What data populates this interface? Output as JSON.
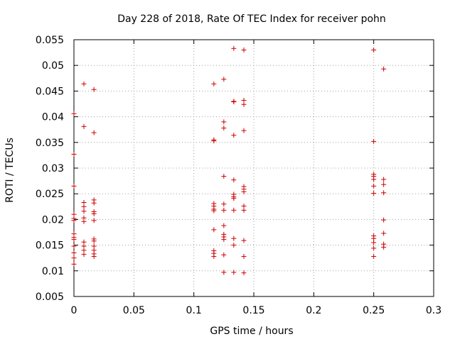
{
  "chart_data": {
    "type": "scatter",
    "title": "Day 228 of 2018, Rate Of TEC Index for receiver pohn",
    "xlabel": "GPS time / hours",
    "ylabel": "ROTI / TECUs",
    "xlim": [
      0,
      0.3
    ],
    "ylim": [
      0.005,
      0.055
    ],
    "x_ticks": [
      {
        "value": 0,
        "label": "0"
      },
      {
        "value": 0.05,
        "label": "0.05"
      },
      {
        "value": 0.1,
        "label": "0.1"
      },
      {
        "value": 0.15,
        "label": "0.15"
      },
      {
        "value": 0.2,
        "label": "0.2"
      },
      {
        "value": 0.25,
        "label": "0.25"
      },
      {
        "value": 0.3,
        "label": "0.3"
      }
    ],
    "y_ticks": [
      {
        "value": 0.005,
        "label": "0.005"
      },
      {
        "value": 0.01,
        "label": "0.01"
      },
      {
        "value": 0.015,
        "label": "0.015"
      },
      {
        "value": 0.02,
        "label": "0.02"
      },
      {
        "value": 0.025,
        "label": "0.025"
      },
      {
        "value": 0.03,
        "label": "0.03"
      },
      {
        "value": 0.035,
        "label": "0.035"
      },
      {
        "value": 0.04,
        "label": "0.04"
      },
      {
        "value": 0.045,
        "label": "0.045"
      },
      {
        "value": 0.05,
        "label": "0.05"
      },
      {
        "value": 0.055,
        "label": "0.055"
      }
    ],
    "grid": true,
    "marker": "+",
    "series": [
      {
        "name": "ROTI",
        "color": "#cc0000",
        "points": [
          [
            0,
            0.0406
          ],
          [
            0,
            0.0327
          ],
          [
            0,
            0.0265
          ],
          [
            0,
            0.021
          ],
          [
            0,
            0.0202
          ],
          [
            0,
            0.0198
          ],
          [
            0,
            0.0172
          ],
          [
            0,
            0.0165
          ],
          [
            0,
            0.0161
          ],
          [
            0,
            0.0148
          ],
          [
            0,
            0.0135
          ],
          [
            0,
            0.0125
          ],
          [
            0,
            0.0113
          ],
          [
            0.0083,
            0.0464
          ],
          [
            0.0083,
            0.0381
          ],
          [
            0.0083,
            0.0233
          ],
          [
            0.0083,
            0.0225
          ],
          [
            0.0083,
            0.0216
          ],
          [
            0.0083,
            0.0203
          ],
          [
            0.0083,
            0.0196
          ],
          [
            0.0083,
            0.0156
          ],
          [
            0.0083,
            0.0148
          ],
          [
            0.0083,
            0.014
          ],
          [
            0.0083,
            0.0132
          ],
          [
            0.0167,
            0.0453
          ],
          [
            0.0167,
            0.0369
          ],
          [
            0.0167,
            0.0238
          ],
          [
            0.0167,
            0.0232
          ],
          [
            0.0167,
            0.0215
          ],
          [
            0.0167,
            0.0211
          ],
          [
            0.0167,
            0.0198
          ],
          [
            0.0167,
            0.0162
          ],
          [
            0.0167,
            0.0158
          ],
          [
            0.0167,
            0.0148
          ],
          [
            0.0167,
            0.014
          ],
          [
            0.0167,
            0.0133
          ],
          [
            0.0167,
            0.0128
          ],
          [
            0.1167,
            0.0464
          ],
          [
            0.1167,
            0.0355
          ],
          [
            0.1167,
            0.0353
          ],
          [
            0.1167,
            0.0231
          ],
          [
            0.1167,
            0.0226
          ],
          [
            0.1167,
            0.022
          ],
          [
            0.1167,
            0.0217
          ],
          [
            0.1167,
            0.018
          ],
          [
            0.1167,
            0.0139
          ],
          [
            0.1167,
            0.0134
          ],
          [
            0.1167,
            0.0128
          ],
          [
            0.125,
            0.0473
          ],
          [
            0.125,
            0.039
          ],
          [
            0.125,
            0.0378
          ],
          [
            0.125,
            0.0284
          ],
          [
            0.125,
            0.023
          ],
          [
            0.125,
            0.0218
          ],
          [
            0.125,
            0.0188
          ],
          [
            0.125,
            0.0171
          ],
          [
            0.125,
            0.0166
          ],
          [
            0.125,
            0.0161
          ],
          [
            0.125,
            0.0131
          ],
          [
            0.125,
            0.0097
          ],
          [
            0.1333,
            0.0533
          ],
          [
            0.1333,
            0.043
          ],
          [
            0.1333,
            0.0429
          ],
          [
            0.1333,
            0.0364
          ],
          [
            0.1333,
            0.0277
          ],
          [
            0.1333,
            0.0249
          ],
          [
            0.1333,
            0.0244
          ],
          [
            0.1333,
            0.0241
          ],
          [
            0.1333,
            0.0218
          ],
          [
            0.1333,
            0.0163
          ],
          [
            0.1333,
            0.015
          ],
          [
            0.1333,
            0.0097
          ],
          [
            0.1417,
            0.053
          ],
          [
            0.1417,
            0.0432
          ],
          [
            0.1417,
            0.0424
          ],
          [
            0.1417,
            0.0373
          ],
          [
            0.1417,
            0.0264
          ],
          [
            0.1417,
            0.0259
          ],
          [
            0.1417,
            0.0254
          ],
          [
            0.1417,
            0.0226
          ],
          [
            0.1417,
            0.0218
          ],
          [
            0.1417,
            0.0159
          ],
          [
            0.1417,
            0.0128
          ],
          [
            0.1417,
            0.0096
          ],
          [
            0.25,
            0.053
          ],
          [
            0.25,
            0.0352
          ],
          [
            0.25,
            0.0288
          ],
          [
            0.25,
            0.0284
          ],
          [
            0.25,
            0.0278
          ],
          [
            0.25,
            0.0265
          ],
          [
            0.25,
            0.0251
          ],
          [
            0.25,
            0.0168
          ],
          [
            0.25,
            0.0163
          ],
          [
            0.25,
            0.0155
          ],
          [
            0.25,
            0.0144
          ],
          [
            0.25,
            0.0128
          ],
          [
            0.2583,
            0.0493
          ],
          [
            0.2583,
            0.0278
          ],
          [
            0.2583,
            0.0268
          ],
          [
            0.2583,
            0.0252
          ],
          [
            0.2583,
            0.0199
          ],
          [
            0.2583,
            0.0173
          ],
          [
            0.2583,
            0.0152
          ],
          [
            0.2583,
            0.0146
          ]
        ]
      }
    ]
  }
}
